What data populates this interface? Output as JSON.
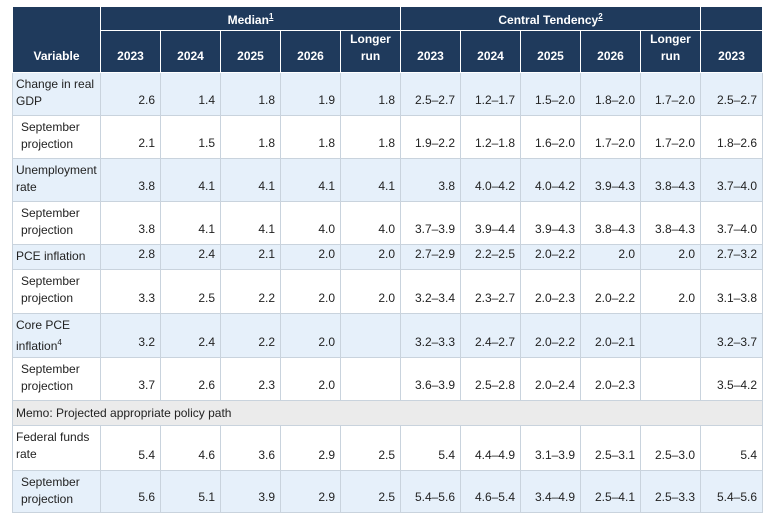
{
  "header": {
    "groups": [
      {
        "label": "Median",
        "footnote": "1"
      },
      {
        "label": "Central Tendency",
        "footnote": "2"
      }
    ],
    "columns": [
      "Variable",
      "2023",
      "2024",
      "2025",
      "2026",
      "Longer run",
      "2023",
      "2024",
      "2025",
      "2026",
      "Longer run",
      "2023"
    ]
  },
  "rows": [
    {
      "label": "Change in real GDP",
      "cells": [
        "2.6",
        "1.4",
        "1.8",
        "1.9",
        "1.8",
        "2.5–2.7",
        "1.2–1.7",
        "1.5–2.0",
        "1.8–2.0",
        "1.7–2.0",
        "2.5–2.7"
      ]
    },
    {
      "label": "September projection",
      "sub": true,
      "cells": [
        "2.1",
        "1.5",
        "1.8",
        "1.8",
        "1.8",
        "1.9–2.2",
        "1.2–1.8",
        "1.6–2.0",
        "1.7–2.0",
        "1.7–2.0",
        "1.8–2.6"
      ]
    },
    {
      "label": "Unemployment rate",
      "cells": [
        "3.8",
        "4.1",
        "4.1",
        "4.1",
        "4.1",
        "3.8",
        "4.0–4.2",
        "4.0–4.2",
        "3.9–4.3",
        "3.8–4.3",
        "3.7–4.0"
      ]
    },
    {
      "label": "September projection",
      "sub": true,
      "cells": [
        "3.8",
        "4.1",
        "4.1",
        "4.0",
        "4.0",
        "3.7–3.9",
        "3.9–4.4",
        "3.9–4.3",
        "3.8–4.3",
        "3.8–4.3",
        "3.7–4.0"
      ]
    },
    {
      "label": "PCE inflation",
      "cells": [
        "2.8",
        "2.4",
        "2.1",
        "2.0",
        "2.0",
        "2.7–2.9",
        "2.2–2.5",
        "2.0–2.2",
        "2.0",
        "2.0",
        "2.7–3.2"
      ]
    },
    {
      "label": "September projection",
      "sub": true,
      "cells": [
        "3.3",
        "2.5",
        "2.2",
        "2.0",
        "2.0",
        "3.2–3.4",
        "2.3–2.7",
        "2.0–2.3",
        "2.0–2.2",
        "2.0",
        "3.1–3.8"
      ]
    },
    {
      "label": "Core PCE inflation",
      "footnote": "4",
      "cells": [
        "3.2",
        "2.4",
        "2.2",
        "2.0",
        null,
        "3.2–3.3",
        "2.4–2.7",
        "2.0–2.2",
        "2.0–2.1",
        null,
        "3.2–3.7"
      ]
    },
    {
      "label": "September projection",
      "sub": true,
      "cells": [
        "3.7",
        "2.6",
        "2.3",
        "2.0",
        null,
        "3.6–3.9",
        "2.5–2.8",
        "2.0–2.4",
        "2.0–2.3",
        null,
        "3.5–4.2"
      ]
    },
    {
      "label": "Memo: Projected appropriate policy path",
      "memo": true
    },
    {
      "label": "Federal funds rate",
      "cells": [
        "5.4",
        "4.6",
        "3.6",
        "2.9",
        "2.5",
        "5.4",
        "4.4–4.9",
        "3.1–3.9",
        "2.5–3.1",
        "2.5–3.0",
        "5.4"
      ]
    },
    {
      "label": "September projection",
      "sub": true,
      "cells": [
        "5.6",
        "5.1",
        "3.9",
        "2.9",
        "2.5",
        "5.4–5.6",
        "4.6–5.4",
        "3.4–4.9",
        "2.5–4.1",
        "2.5–3.3",
        "5.4–5.6"
      ]
    }
  ]
}
